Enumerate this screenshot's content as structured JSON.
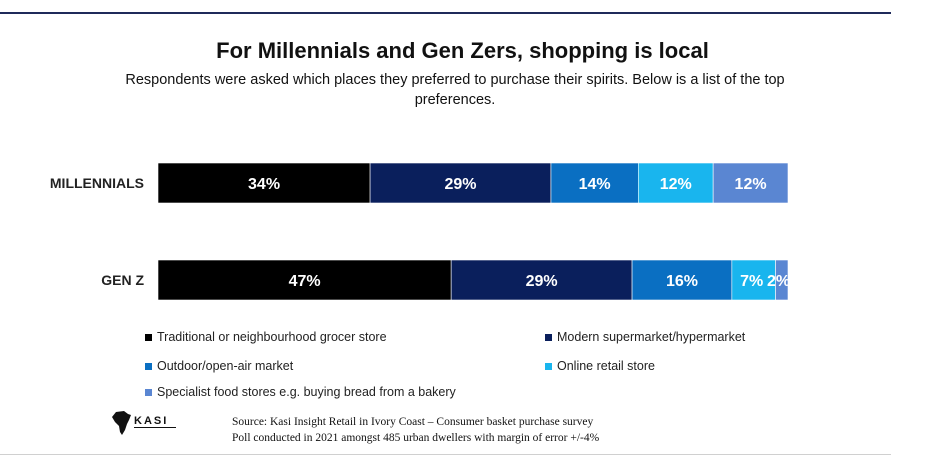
{
  "title": "For Millennials and Gen Zers, shopping is local",
  "subtitle": "Respondents were asked which places they preferred to purchase their spirits. Below is a list of the top preferences.",
  "source": {
    "line1": "Source: Kasi Insight Retail in Ivory Coast – Consumer basket purchase survey",
    "line2": "Poll conducted in 2021 amongst 485 urban dwellers with margin of error +/-4%"
  },
  "logo": {
    "text": "KASI"
  },
  "colors": {
    "traditional": "#000000",
    "modern": "#0a1f5c",
    "outdoor": "#0a6fc2",
    "online": "#19b5ee",
    "specialist": "#5a86d2",
    "rule": "#1f2a5a"
  },
  "chart_data": {
    "type": "bar",
    "orientation": "horizontal",
    "stacked": true,
    "categories": [
      "MILLENNIALS",
      "GEN Z"
    ],
    "series": [
      {
        "name": "Traditional or neighbourhood grocer store",
        "values": [
          34,
          47
        ],
        "labels": [
          "34%",
          "47%"
        ],
        "color": "#000000"
      },
      {
        "name": "Modern supermarket/hypermarket",
        "values": [
          29,
          29
        ],
        "labels": [
          "29%",
          "29%"
        ],
        "color": "#0a1f5c"
      },
      {
        "name": "Outdoor/open-air market",
        "values": [
          14,
          16
        ],
        "labels": [
          "14%",
          "16%"
        ],
        "color": "#0a6fc2"
      },
      {
        "name": "Online retail store",
        "values": [
          12,
          7
        ],
        "labels": [
          "12%",
          "7%"
        ],
        "color": "#19b5ee"
      },
      {
        "name": "Specialist food stores e.g. buying bread from a bakery",
        "values": [
          12,
          2
        ],
        "labels": [
          "12%",
          "2%"
        ],
        "color": "#5a86d2"
      }
    ],
    "xlim": [
      0,
      101
    ],
    "grid": false,
    "legend_position": "bottom"
  }
}
